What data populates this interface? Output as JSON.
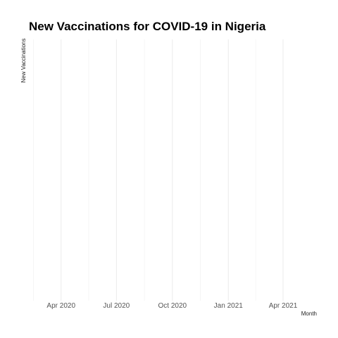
{
  "chart_data": {
    "type": "line",
    "title": "New Vaccinations for COVID-19 in Nigeria",
    "xlabel": "Month",
    "ylabel": "New Vaccinations",
    "x_ticks": [
      "Apr 2020",
      "Jul 2020",
      "Oct 2020",
      "Jan 2021",
      "Apr 2021"
    ],
    "x_tick_dates": [
      "2020-04-01",
      "2020-07-01",
      "2020-10-01",
      "2021-01-01",
      "2021-04-01"
    ],
    "xlim": [
      "2020-02-15",
      "2021-05-15"
    ],
    "series": [
      {
        "values": []
      }
    ],
    "grid": true,
    "background": "#ffffff",
    "grid_color": "#ebebeb"
  }
}
